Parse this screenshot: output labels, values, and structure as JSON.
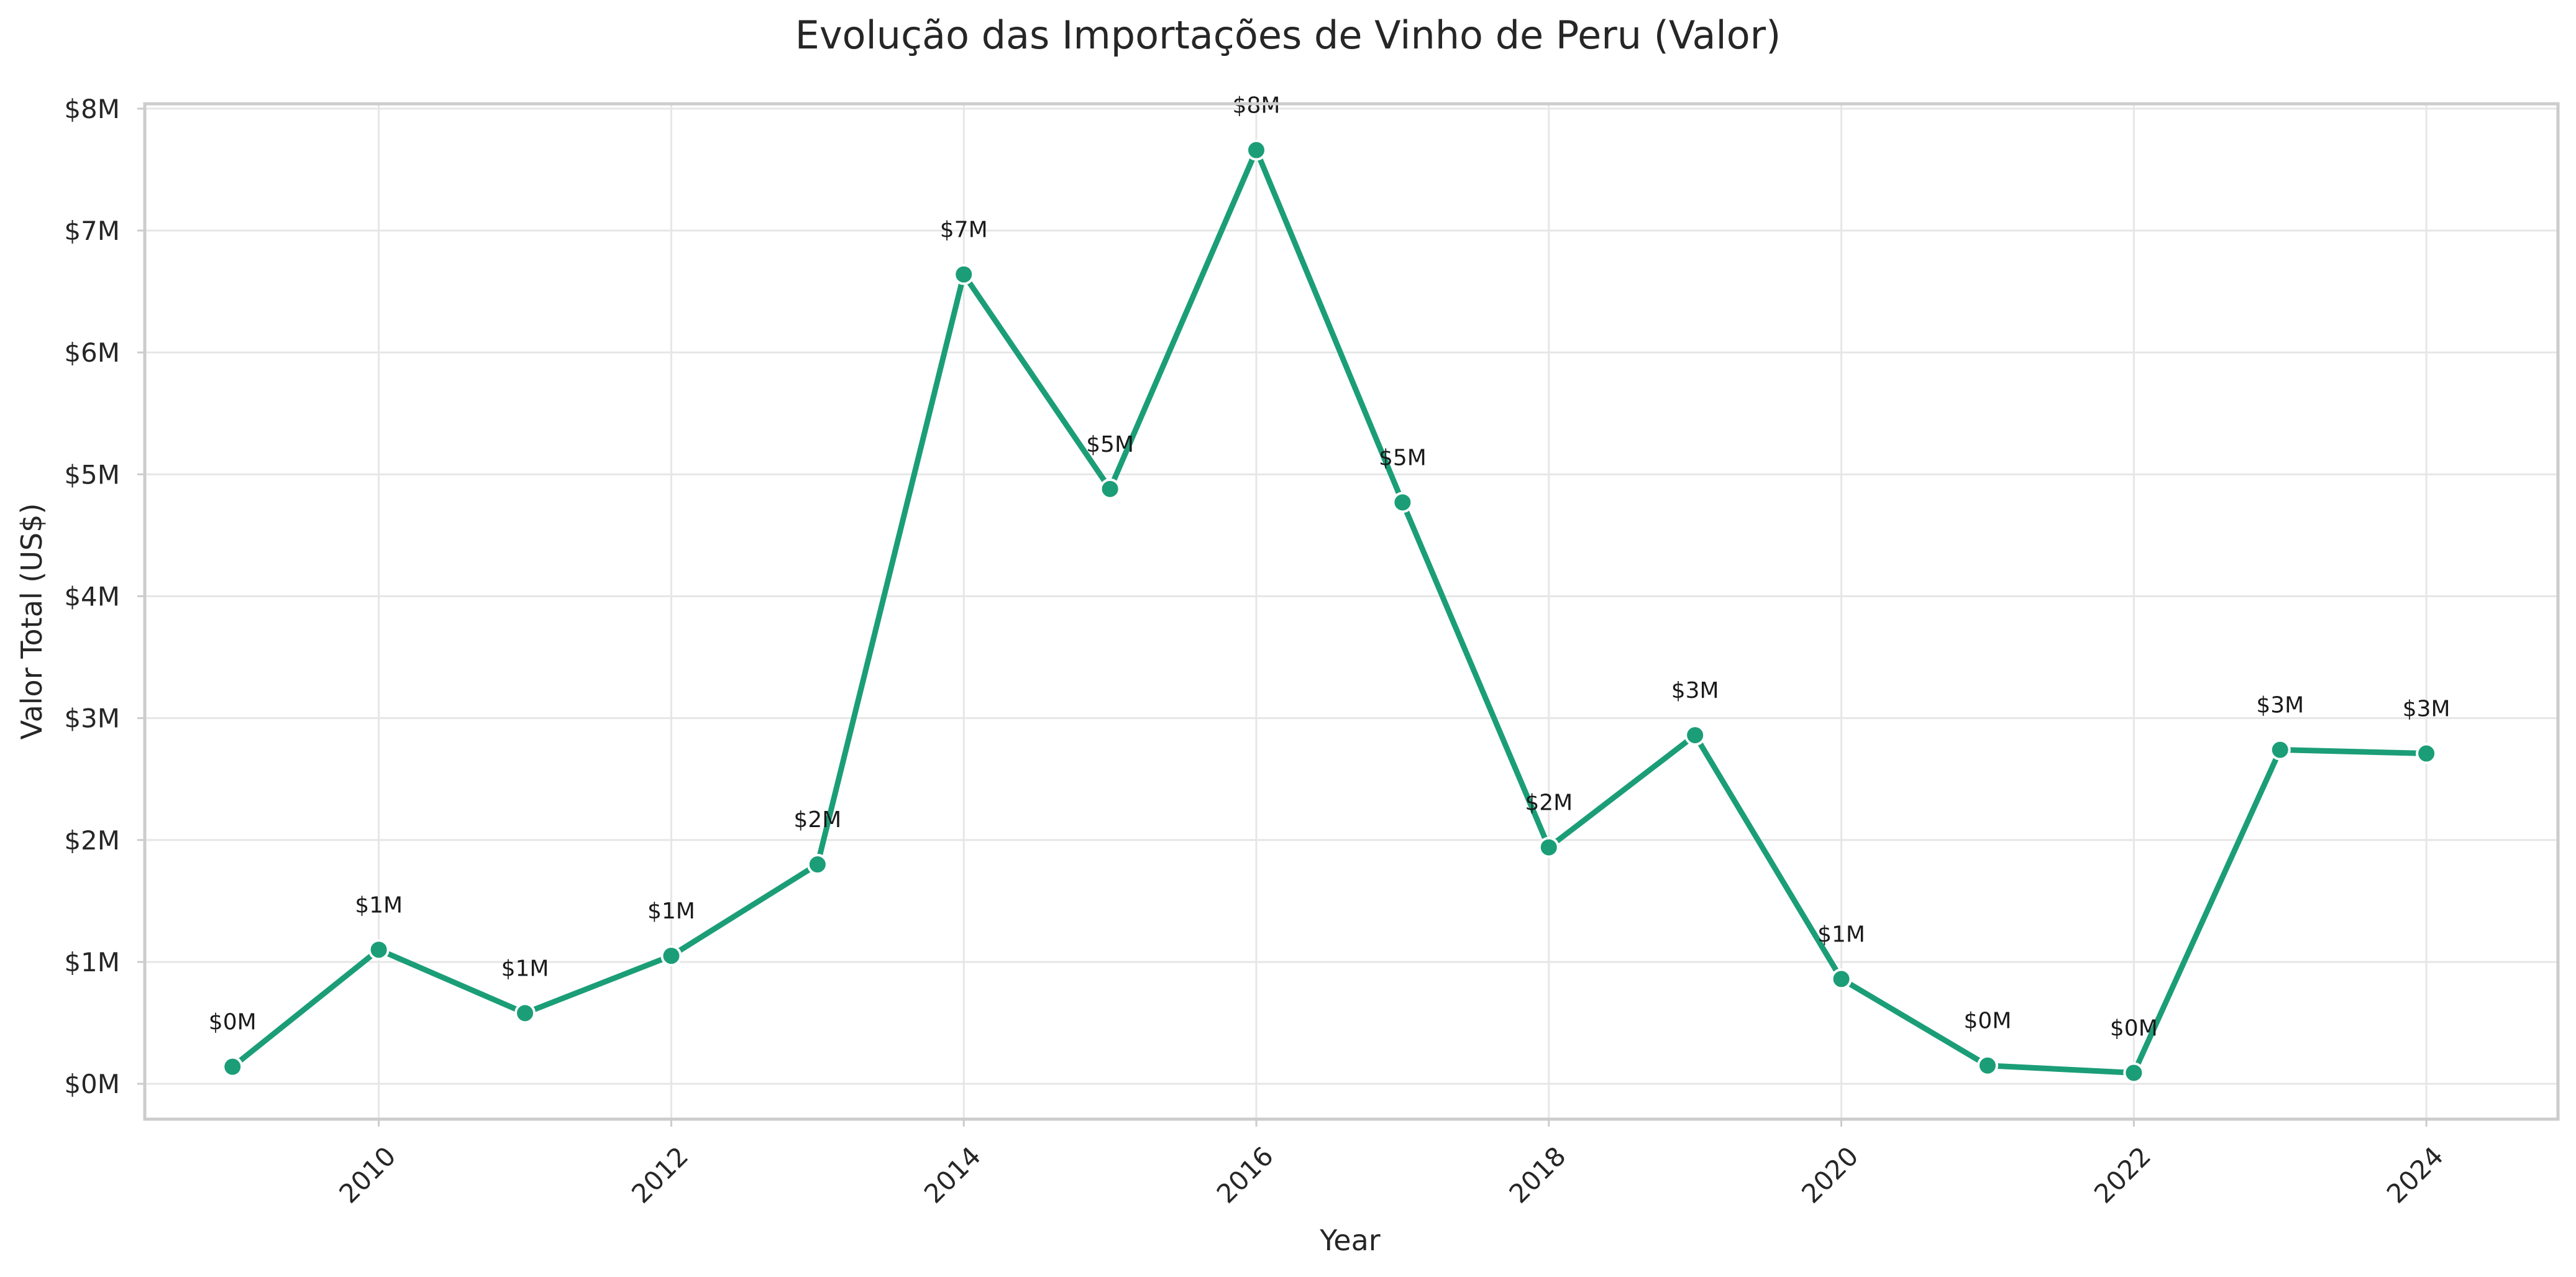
{
  "chart_data": {
    "type": "line",
    "title": "Evolução das Importações de Vinho de Peru (Valor)",
    "xlabel": "Year",
    "ylabel": "Valor Total (US$)",
    "x": [
      2009,
      2010,
      2011,
      2012,
      2013,
      2014,
      2015,
      2016,
      2017,
      2018,
      2019,
      2020,
      2021,
      2022,
      2023,
      2024
    ],
    "series": [
      {
        "values": [
          0.14,
          1.1,
          0.58,
          1.05,
          1.8,
          6.64,
          4.88,
          7.66,
          4.77,
          1.94,
          2.86,
          0.86,
          0.15,
          0.09,
          2.74,
          2.71
        ],
        "point_labels": [
          "$0M",
          "$1M",
          "$1M",
          "$1M",
          "$2M",
          "$7M",
          "$5M",
          "$8M",
          "$5M",
          "$2M",
          "$3M",
          "$1M",
          "$0M",
          "$0M",
          "$3M",
          "$3M"
        ]
      }
    ],
    "xticks": [
      2010,
      2012,
      2014,
      2016,
      2018,
      2020,
      2022,
      2024
    ],
    "xtick_labels": [
      "2010",
      "2012",
      "2014",
      "2016",
      "2018",
      "2020",
      "2022",
      "2024"
    ],
    "yticks": [
      0,
      1,
      2,
      3,
      4,
      5,
      6,
      7,
      8
    ],
    "ytick_labels": [
      "$0M",
      "$1M",
      "$2M",
      "$3M",
      "$4M",
      "$5M",
      "$6M",
      "$7M",
      "$8M"
    ],
    "xlim": [
      2008.4,
      2024.9
    ],
    "ylim": [
      -0.29,
      8.04
    ],
    "grid": true,
    "colors": {
      "line": "#1b9e77",
      "marker_edge": "#ffffff",
      "grid": "#e6e6e6",
      "frame": "#cccccc"
    }
  }
}
